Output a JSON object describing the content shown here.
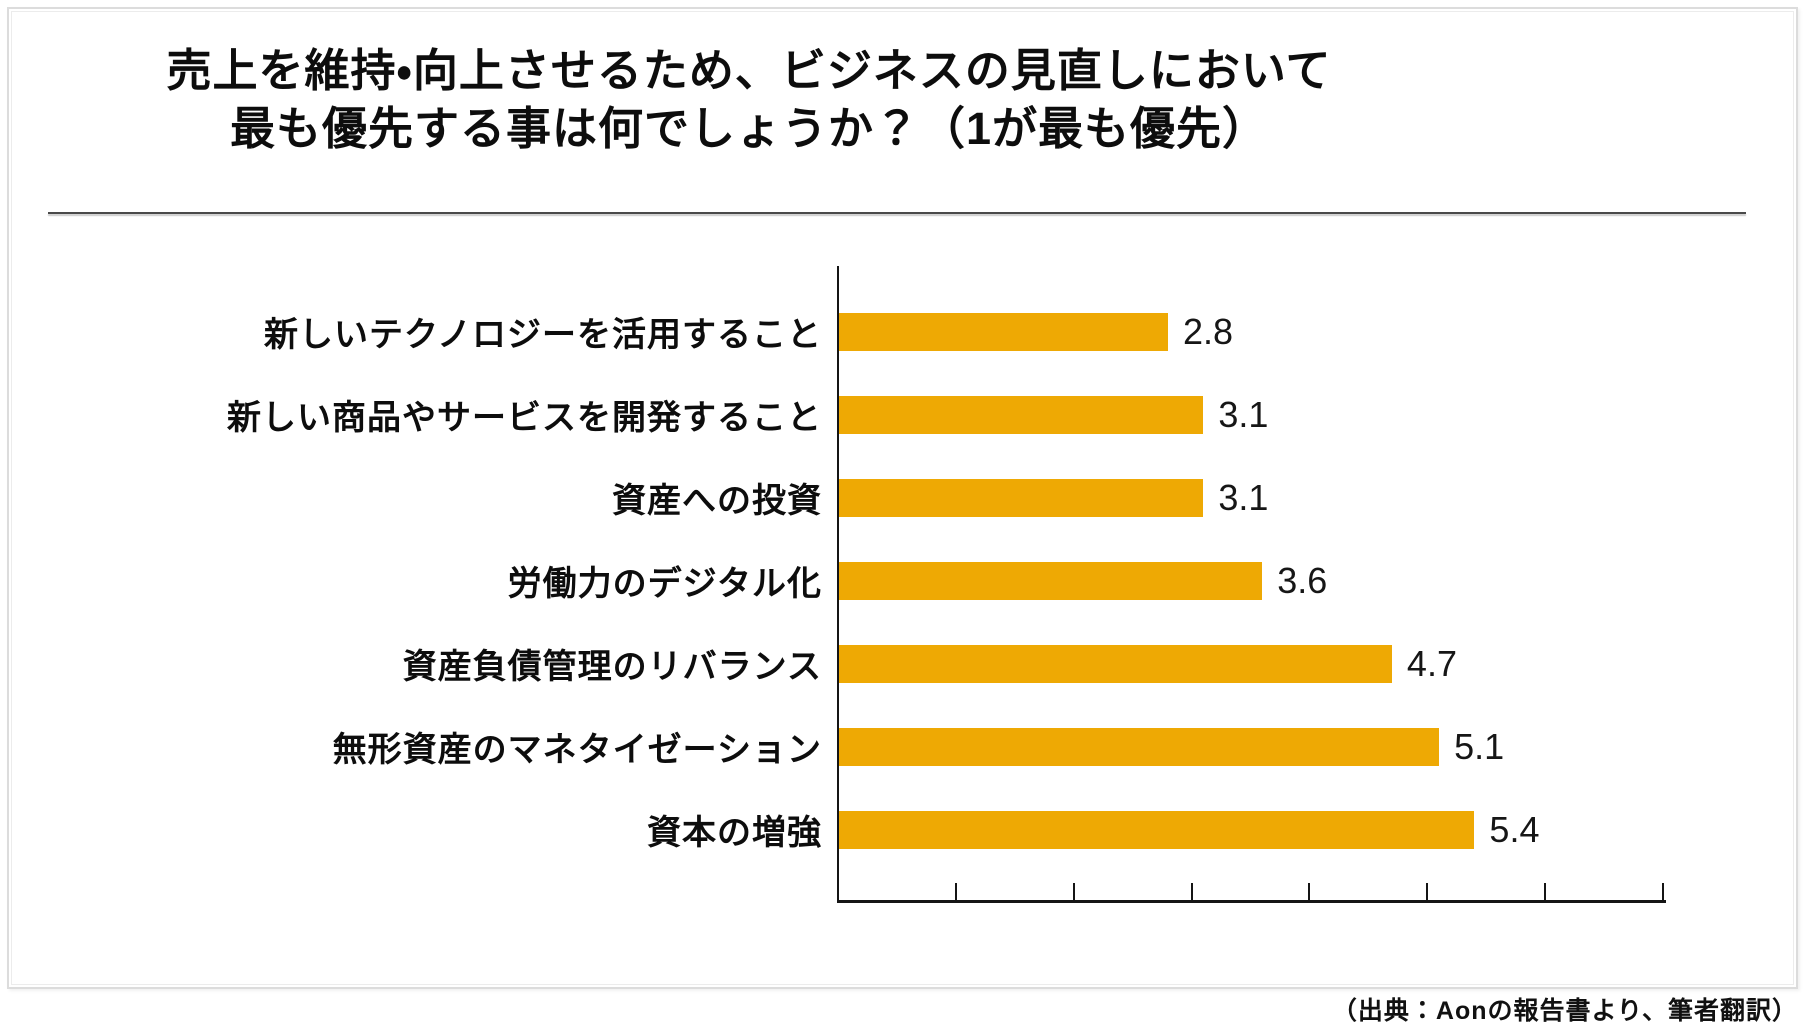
{
  "title": {
    "line1": "売上を維持・向上させるため、ビジネスの見直しにおいて",
    "line2": "最も優先する事は何でしょうか？（1が最も優先）"
  },
  "source_note": "（出典：Aonの報告書より、筆者翻訳）",
  "colors": {
    "bar": "#EEA904",
    "axis": "#151515",
    "separator": "#4a4a4a",
    "frame_border": "#dcdcdc",
    "text": "#0d0d0d"
  },
  "chart_data": {
    "type": "bar",
    "orientation": "horizontal",
    "title": "売上を維持・向上させるため、ビジネスの見直しにおいて最も優先する事は何でしょうか？（1が最も優先）",
    "categories": [
      "新しいテクノロジーを活用すること",
      "新しい商品やサービスを開発すること",
      "資産への投資",
      "労働力のデジタル化",
      "資産負債管理のリバランス",
      "無形資産のマネタイゼーション",
      "資本の増強"
    ],
    "values": [
      2.8,
      3.1,
      3.1,
      3.6,
      4.7,
      5.1,
      5.4
    ],
    "value_labels": [
      "2.8",
      "3.1",
      "3.1",
      "3.6",
      "4.7",
      "5.1",
      "5.4"
    ],
    "xlabel": "",
    "ylabel": "",
    "xlim": [
      0,
      7
    ],
    "tick_interval": 1,
    "x_tick_labels": [],
    "grid": false,
    "legend": "none",
    "bar_color": "#EEA904",
    "data_labels_position": "outside-end"
  }
}
